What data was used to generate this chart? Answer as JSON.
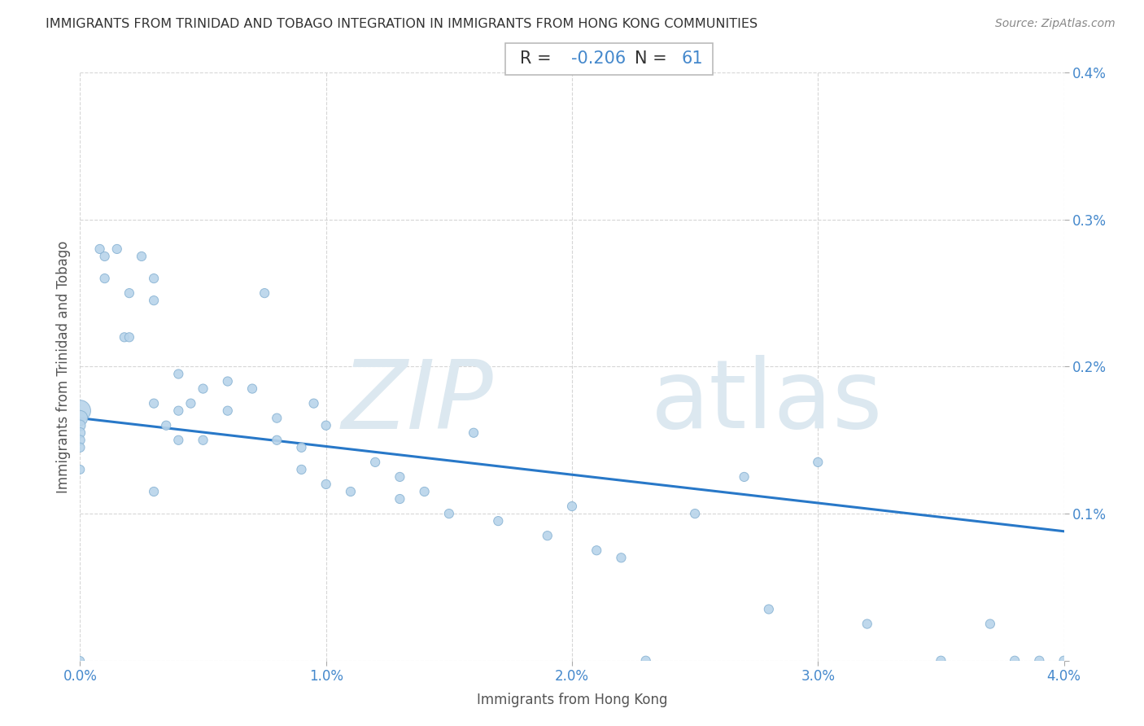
{
  "title": "IMMIGRANTS FROM TRINIDAD AND TOBAGO INTEGRATION IN IMMIGRANTS FROM HONG KONG COMMUNITIES",
  "source": "Source: ZipAtlas.com",
  "xlabel": "Immigrants from Hong Kong",
  "ylabel": "Immigrants from Trinidad and Tobago",
  "R_label": "R = ",
  "R_value": "-0.206",
  "N_label": "N = ",
  "N_value": "61",
  "xlim": [
    0.0,
    0.04
  ],
  "ylim": [
    0.0,
    0.004
  ],
  "xticks": [
    0.0,
    0.01,
    0.02,
    0.03,
    0.04
  ],
  "xtick_labels": [
    "0.0%",
    "1.0%",
    "2.0%",
    "3.0%",
    "4.0%"
  ],
  "ytick_labels": [
    "",
    "0.1%",
    "0.2%",
    "0.3%",
    "0.4%"
  ],
  "scatter_color": "#b8d4ea",
  "scatter_edge_color": "#8ab4d4",
  "line_color": "#2878c8",
  "grid_color": "#cccccc",
  "background_color": "#ffffff",
  "watermark_color": "#dce8f0",
  "label_color": "#4488cc",
  "text_color": "#555555",
  "title_color": "#333333",
  "source_color": "#888888",
  "x_pts": [
    0.0,
    0.0,
    0.0,
    0.0,
    0.0,
    0.0,
    0.0,
    0.0,
    0.0008,
    0.001,
    0.001,
    0.0015,
    0.0018,
    0.002,
    0.002,
    0.0025,
    0.003,
    0.003,
    0.003,
    0.003,
    0.0035,
    0.004,
    0.004,
    0.004,
    0.0045,
    0.005,
    0.005,
    0.006,
    0.006,
    0.007,
    0.0075,
    0.008,
    0.008,
    0.009,
    0.009,
    0.0095,
    0.01,
    0.01,
    0.011,
    0.012,
    0.013,
    0.013,
    0.014,
    0.015,
    0.016,
    0.017,
    0.019,
    0.02,
    0.021,
    0.022,
    0.023,
    0.025,
    0.027,
    0.028,
    0.03,
    0.032,
    0.035,
    0.037,
    0.038,
    0.039,
    0.04
  ],
  "y_pts": [
    0.0017,
    0.00165,
    0.0016,
    0.00155,
    0.0015,
    0.00145,
    0.0013,
    0.0,
    0.0028,
    0.00275,
    0.0026,
    0.0028,
    0.0022,
    0.0025,
    0.0022,
    0.00275,
    0.0026,
    0.00245,
    0.00175,
    0.00115,
    0.0016,
    0.00195,
    0.0017,
    0.0015,
    0.00175,
    0.00185,
    0.0015,
    0.0019,
    0.0017,
    0.00185,
    0.0025,
    0.00165,
    0.0015,
    0.00145,
    0.0013,
    0.00175,
    0.0016,
    0.0012,
    0.00115,
    0.00135,
    0.00125,
    0.0011,
    0.00115,
    0.001,
    0.00155,
    0.00095,
    0.00085,
    0.00105,
    0.00075,
    0.0007,
    0.0,
    0.001,
    0.00125,
    0.00035,
    0.00135,
    0.00025,
    0.0,
    0.00025,
    0.0,
    0.0,
    0.0
  ],
  "sizes": [
    350,
    180,
    90,
    80,
    70,
    65,
    60,
    55,
    65,
    65,
    65,
    65,
    65,
    65,
    65,
    65,
    65,
    65,
    65,
    65,
    65,
    65,
    65,
    65,
    65,
    65,
    65,
    65,
    65,
    65,
    65,
    65,
    65,
    65,
    65,
    65,
    65,
    65,
    65,
    65,
    65,
    65,
    65,
    65,
    65,
    65,
    65,
    65,
    65,
    65,
    65,
    65,
    65,
    65,
    65,
    65,
    65,
    65,
    65,
    65,
    65
  ],
  "line_x": [
    0.0,
    0.04
  ],
  "line_y": [
    0.00165,
    0.00088
  ]
}
